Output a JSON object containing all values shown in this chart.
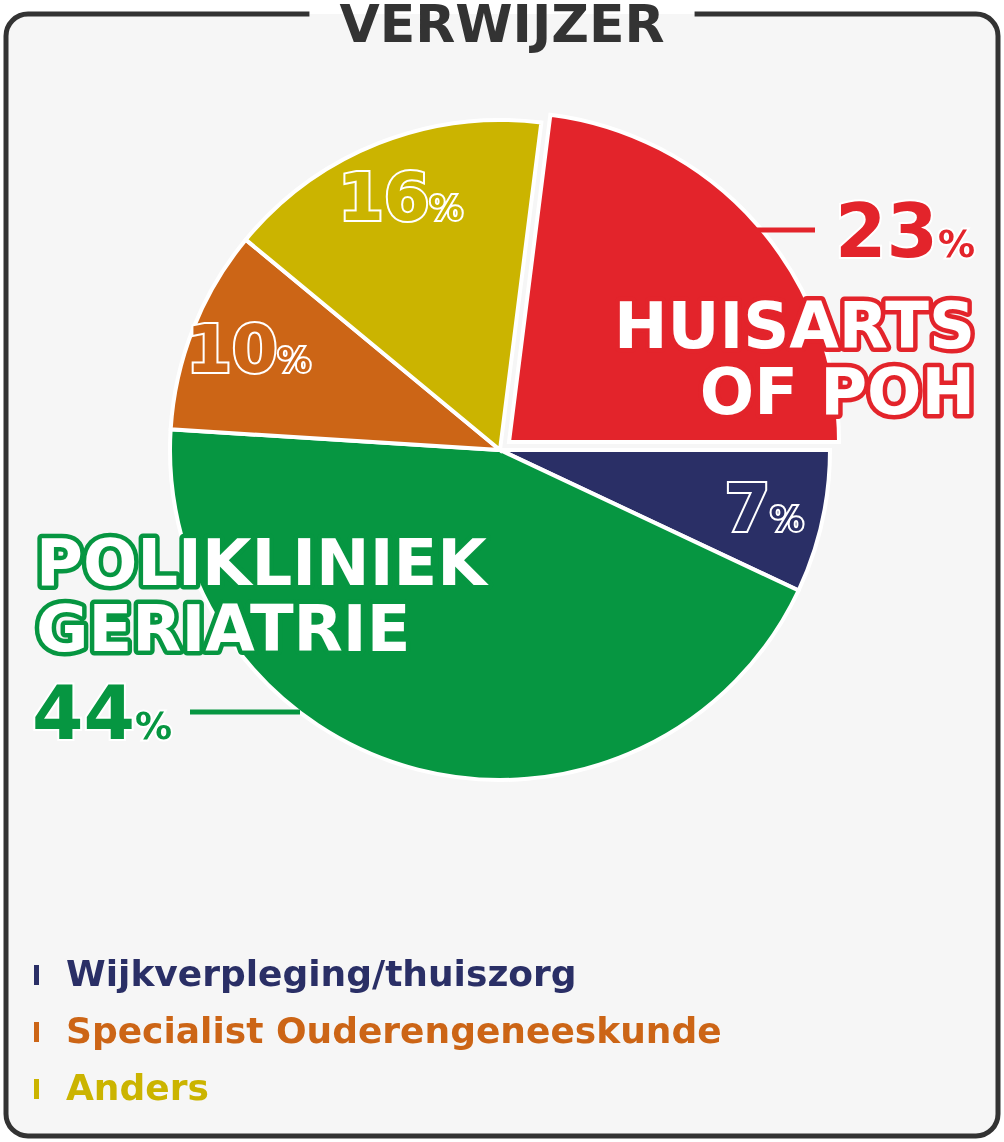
{
  "chart_data": {
    "type": "pie",
    "title": "VERWIJZER",
    "categories": [
      "HUISARTS OF POH",
      "Wijkverpleging/thuiszorg",
      "POLIKLINIEK GERIATRIE",
      "Specialist Ouderengeneeskunde",
      "Anders"
    ],
    "values": [
      23,
      7,
      44,
      10,
      16
    ],
    "value_labels": [
      "23%",
      "7%",
      "44%",
      "10%",
      "16%"
    ],
    "colors": [
      "#e3242b",
      "#2a2f66",
      "#069641",
      "#cc6516",
      "#cbb400"
    ],
    "legend": "bottom left"
  }
}
